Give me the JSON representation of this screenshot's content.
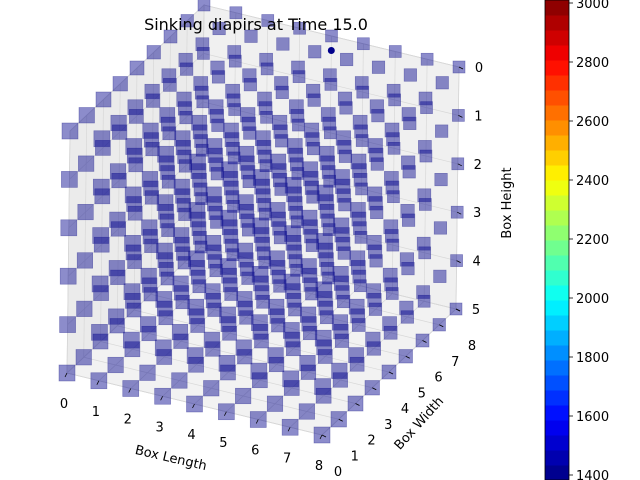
{
  "chart_data": {
    "type": "scatter3d",
    "title": "Sinking diapirs at Time 15.0",
    "xlabel": "Box Length",
    "ylabel": "Box Width",
    "zlabel": "Box Height",
    "xlim": [
      0,
      8
    ],
    "ylim": [
      0,
      8
    ],
    "zlim": [
      0,
      5
    ],
    "x_ticks": [
      "0",
      "1",
      "2",
      "3",
      "4",
      "5",
      "6",
      "7",
      "8"
    ],
    "y_ticks": [
      "0",
      "1",
      "2",
      "3",
      "4",
      "5",
      "6",
      "7",
      "8"
    ],
    "z_ticks": [
      "0",
      "1",
      "2",
      "3",
      "4",
      "5"
    ],
    "z_inverted": true,
    "marker": "square",
    "marker_color": "#00008b",
    "marker_alpha": 0.5,
    "grid": true,
    "grid_points": {
      "x_values": [
        0,
        1,
        2,
        3,
        4,
        5,
        6,
        7,
        8
      ],
      "y_values": [
        0,
        1,
        2,
        3,
        4,
        5,
        6,
        7,
        8
      ],
      "z_values": [
        0,
        1,
        2,
        3,
        4,
        5
      ],
      "value": 1400
    },
    "highlight_point": {
      "x": 4,
      "y": 8,
      "z": 0.3,
      "value": 1400
    },
    "colorbar": {
      "colormap": "jet",
      "min": 1400,
      "max": 3000,
      "ticks": [
        "1400",
        "1600",
        "1800",
        "2000",
        "2200",
        "2400",
        "2600",
        "2800",
        "3000"
      ]
    }
  }
}
